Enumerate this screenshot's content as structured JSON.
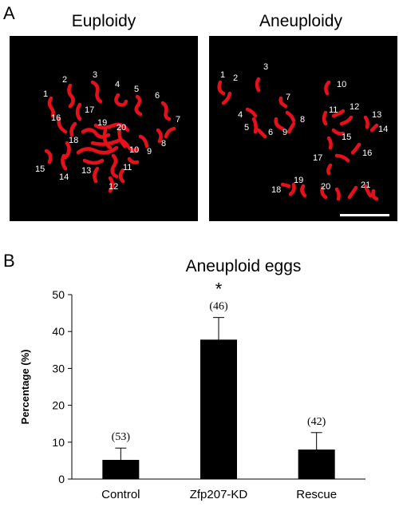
{
  "panel_a": {
    "letter": "A",
    "euploidy": {
      "title": "Euploidy",
      "labels": [
        "1",
        "2",
        "3",
        "4",
        "5",
        "6",
        "7",
        "8",
        "9",
        "10",
        "11",
        "12",
        "13",
        "14",
        "15",
        "16",
        "17",
        "18",
        "19",
        "20"
      ]
    },
    "aneuploidy": {
      "title": "Aneuploidy",
      "labels": [
        "1",
        "2",
        "3",
        "4",
        "5",
        "6",
        "7",
        "8",
        "9",
        "10",
        "11",
        "12",
        "13",
        "14",
        "15",
        "16",
        "17",
        "18",
        "19",
        "20",
        "21"
      ]
    },
    "colors": {
      "chromosome": "#e5101a",
      "background": "#000000",
      "scale_bar": "#ffffff"
    }
  },
  "panel_b": {
    "letter": "B"
  },
  "chart_data": {
    "type": "bar",
    "title": "Aneuploid eggs",
    "ylabel": "Percentage (%)",
    "xlabel": "",
    "categories": [
      "Control",
      "Zfp207-KD",
      "Rescue"
    ],
    "values": [
      5.2,
      37.8,
      8.0
    ],
    "errors": [
      3.2,
      6.0,
      4.6
    ],
    "n_labels": [
      "(53)",
      "(46)",
      "(42)"
    ],
    "significance": [
      "",
      "*",
      ""
    ],
    "ylim": [
      0,
      50
    ],
    "yticks": [
      "0",
      "10",
      "20",
      "30",
      "40",
      "50"
    ],
    "grid": false,
    "legend": "none",
    "bar_color": "#000000"
  }
}
